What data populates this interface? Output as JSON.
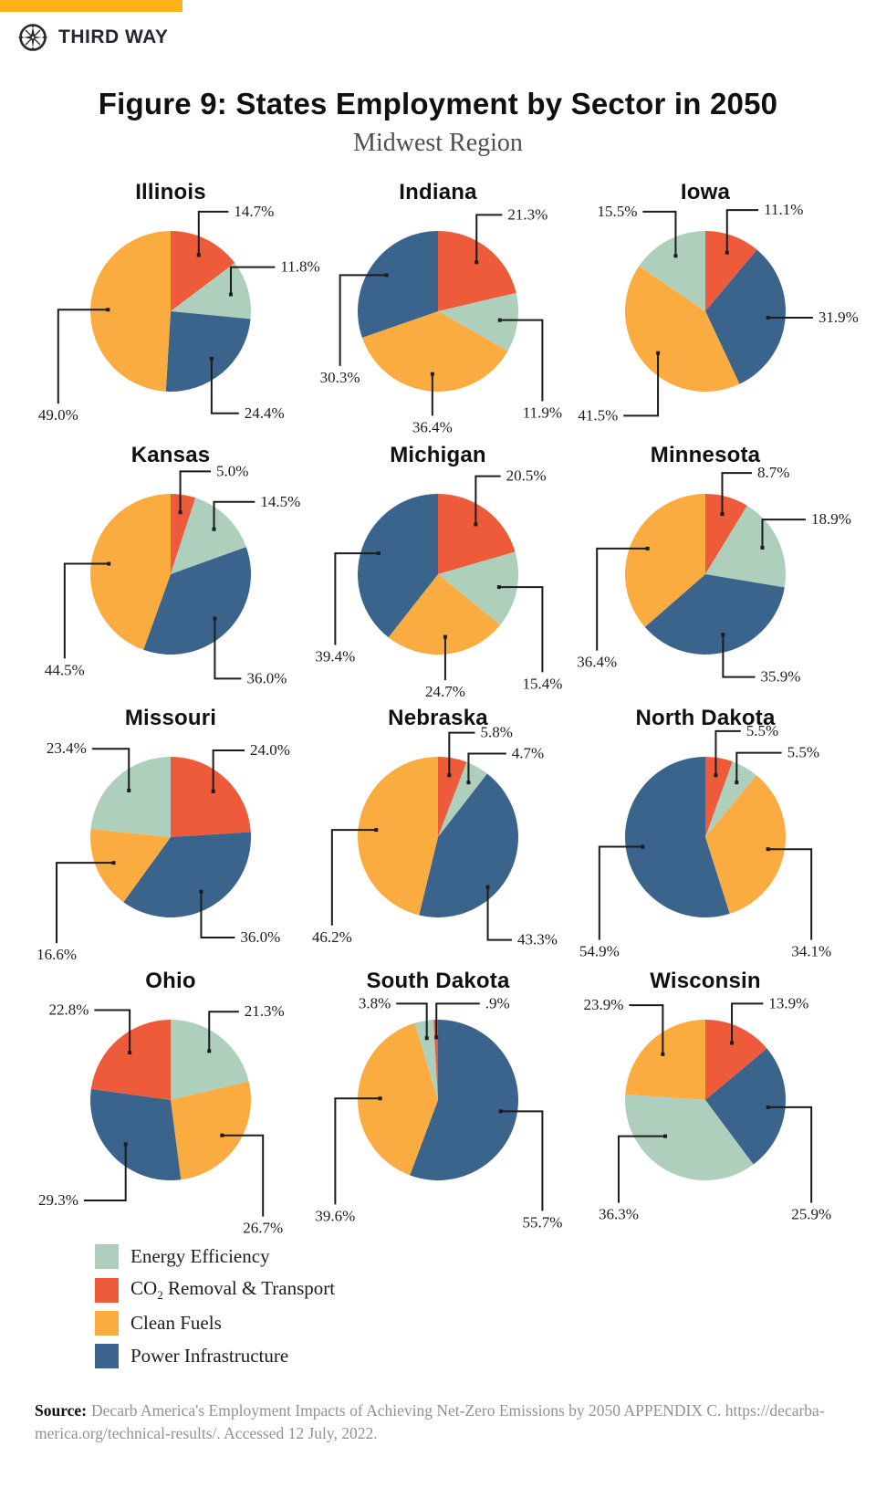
{
  "brand": {
    "name": "THIRD WAY",
    "logo_icon": "compass-icon",
    "accent_color": "#fbb117",
    "ink_color": "#23272e"
  },
  "title": "Figure 9: States Employment by Sector in 2050",
  "subtitle": "Midwest Region",
  "source": {
    "prefix": "Source:",
    "lines": [
      "Decarb America's Employment Impacts of Achieving Net-Zero Emissions by 2050 APPENDIX C. https://decarba-",
      "merica.org/technical-results/. Accessed 12 July, 2022."
    ]
  },
  "chart_data": {
    "type": "pie",
    "unit": "%",
    "start_angle_deg": 0,
    "direction": "clockwise",
    "legend_position": "bottom-left",
    "categories": [
      {
        "key": "ee",
        "pre": "Energy Efficiency",
        "sub": "",
        "post": "",
        "label": "Energy Efficiency",
        "color": "#aecfbc"
      },
      {
        "key": "co2",
        "pre": "CO",
        "sub": "2",
        "post": " Removal & Transport",
        "label": "CO2 Removal & Transport",
        "color": "#ed5b3b"
      },
      {
        "key": "fuels",
        "pre": "Clean Fuels",
        "sub": "",
        "post": "",
        "label": "Clean Fuels",
        "color": "#fbac41"
      },
      {
        "key": "power",
        "pre": "Power Infrastructure",
        "sub": "",
        "post": "",
        "label": "Power Infrastructure",
        "color": "#3b648d"
      }
    ],
    "pies": [
      {
        "state": "Illinois",
        "slices": [
          {
            "category": "co2",
            "value": 14.7,
            "label": "14.7%",
            "a": [
              0.35,
              -0.7
            ],
            "l": [
              0.72,
              -1.24
            ],
            "e": "vh",
            "t": "right"
          },
          {
            "category": "ee",
            "value": 11.8,
            "label": "11.8%",
            "a": [
              0.75,
              -0.21
            ],
            "l": [
              1.3,
              -0.55
            ],
            "e": "vh",
            "t": "right"
          },
          {
            "category": "power",
            "value": 24.4,
            "label": "24.4%",
            "a": [
              0.51,
              0.59
            ],
            "l": [
              0.85,
              1.27
            ],
            "e": "vh",
            "t": "right"
          },
          {
            "category": "fuels",
            "value": 49.0,
            "label": "49.0%",
            "a": [
              -0.78,
              -0.02
            ],
            "l": [
              -1.4,
              1.15
            ],
            "e": "hv",
            "t": "below"
          }
        ]
      },
      {
        "state": "Indiana",
        "slices": [
          {
            "category": "co2",
            "value": 21.3,
            "label": "21.3%",
            "a": [
              0.48,
              -0.61
            ],
            "l": [
              0.8,
              -1.2
            ],
            "e": "vh",
            "t": "right"
          },
          {
            "category": "ee",
            "value": 11.9,
            "label": "11.9%",
            "a": [
              0.77,
              0.11
            ],
            "l": [
              1.3,
              1.12
            ],
            "e": "hv",
            "t": "below"
          },
          {
            "category": "fuels",
            "value": 36.4,
            "label": "36.4%",
            "a": [
              -0.07,
              0.78
            ],
            "l": [
              -0.07,
              1.3
            ],
            "e": "vh",
            "t": "below"
          },
          {
            "category": "power",
            "value": 30.3,
            "label": "30.3%",
            "a": [
              -0.64,
              -0.45
            ],
            "l": [
              -1.22,
              0.68
            ],
            "e": "hv",
            "t": "below"
          }
        ]
      },
      {
        "state": "Iowa",
        "slices": [
          {
            "category": "co2",
            "value": 11.1,
            "label": "11.1%",
            "a": [
              0.27,
              -0.73
            ],
            "l": [
              0.66,
              -1.26
            ],
            "e": "vh",
            "t": "right"
          },
          {
            "category": "power",
            "value": 31.9,
            "label": "31.9%",
            "a": [
              0.78,
              0.08
            ],
            "l": [
              1.34,
              0.08
            ],
            "e": "hv",
            "t": "right"
          },
          {
            "category": "fuels",
            "value": 41.5,
            "label": "41.5%",
            "a": [
              -0.59,
              0.52
            ],
            "l": [
              -1.02,
              1.3
            ],
            "e": "vh",
            "t": "left"
          },
          {
            "category": "ee",
            "value": 15.5,
            "label": "15.5%",
            "a": [
              -0.37,
              -0.69
            ],
            "l": [
              -0.78,
              -1.24
            ],
            "e": "vh",
            "t": "left"
          }
        ]
      },
      {
        "state": "Kansas",
        "slices": [
          {
            "category": "co2",
            "value": 5.0,
            "label": "5.0%",
            "a": [
              0.12,
              -0.77
            ],
            "l": [
              0.5,
              -1.28
            ],
            "e": "vh",
            "t": "right"
          },
          {
            "category": "ee",
            "value": 14.5,
            "label": "14.5%",
            "a": [
              0.54,
              -0.56
            ],
            "l": [
              1.05,
              -0.9
            ],
            "e": "vh",
            "t": "right"
          },
          {
            "category": "power",
            "value": 36.0,
            "label": "36.0%",
            "a": [
              0.55,
              0.55
            ],
            "l": [
              0.88,
              1.3
            ],
            "e": "vh",
            "t": "right"
          },
          {
            "category": "fuels",
            "value": 44.5,
            "label": "44.5%",
            "a": [
              -0.77,
              -0.13
            ],
            "l": [
              -1.32,
              1.05
            ],
            "e": "hv",
            "t": "below"
          }
        ]
      },
      {
        "state": "Michigan",
        "slices": [
          {
            "category": "co2",
            "value": 20.5,
            "label": "20.5%",
            "a": [
              0.47,
              -0.62
            ],
            "l": [
              0.78,
              -1.22
            ],
            "e": "vh",
            "t": "right"
          },
          {
            "category": "ee",
            "value": 15.4,
            "label": "15.4%",
            "a": [
              0.76,
              0.16
            ],
            "l": [
              1.3,
              1.22
            ],
            "e": "hv",
            "t": "below"
          },
          {
            "category": "fuels",
            "value": 24.7,
            "label": "24.7%",
            "a": [
              0.09,
              0.78
            ],
            "l": [
              0.09,
              1.32
            ],
            "e": "vh",
            "t": "below"
          },
          {
            "category": "power",
            "value": 39.4,
            "label": "39.4%",
            "a": [
              -0.74,
              -0.26
            ],
            "l": [
              -1.28,
              0.88
            ],
            "e": "hv",
            "t": "below"
          }
        ]
      },
      {
        "state": "Minnesota",
        "slices": [
          {
            "category": "co2",
            "value": 8.7,
            "label": "8.7%",
            "a": [
              0.21,
              -0.75
            ],
            "l": [
              0.58,
              -1.26
            ],
            "e": "vh",
            "t": "right"
          },
          {
            "category": "ee",
            "value": 18.9,
            "label": "18.9%",
            "a": [
              0.71,
              -0.33
            ],
            "l": [
              1.25,
              -0.68
            ],
            "e": "vh",
            "t": "right"
          },
          {
            "category": "power",
            "value": 35.9,
            "label": "35.9%",
            "a": [
              0.22,
              0.75
            ],
            "l": [
              0.62,
              1.28
            ],
            "e": "vh",
            "t": "right"
          },
          {
            "category": "fuels",
            "value": 36.4,
            "label": "36.4%",
            "a": [
              -0.72,
              -0.32
            ],
            "l": [
              -1.35,
              0.95
            ],
            "e": "hv",
            "t": "below"
          }
        ]
      },
      {
        "state": "Missouri",
        "slices": [
          {
            "category": "co2",
            "value": 24.0,
            "label": "24.0%",
            "a": [
              0.53,
              -0.57
            ],
            "l": [
              0.92,
              -1.08
            ],
            "e": "vh",
            "t": "right"
          },
          {
            "category": "power",
            "value": 36.0,
            "label": "36.0%",
            "a": [
              0.38,
              0.68
            ],
            "l": [
              0.8,
              1.25
            ],
            "e": "vh",
            "t": "right"
          },
          {
            "category": "fuels",
            "value": 16.6,
            "label": "16.6%",
            "a": [
              -0.71,
              0.32
            ],
            "l": [
              -1.42,
              1.32
            ],
            "e": "hv",
            "t": "below"
          },
          {
            "category": "ee",
            "value": 23.4,
            "label": "23.4%",
            "a": [
              -0.52,
              -0.58
            ],
            "l": [
              -0.98,
              -1.1
            ],
            "e": "vh",
            "t": "left"
          }
        ]
      },
      {
        "state": "Nebraska",
        "slices": [
          {
            "category": "co2",
            "value": 5.8,
            "label": "5.8%",
            "a": [
              0.14,
              -0.77
            ],
            "l": [
              0.46,
              -1.3
            ],
            "e": "vh",
            "t": "right"
          },
          {
            "category": "ee",
            "value": 4.7,
            "label": "4.7%",
            "a": [
              0.38,
              -0.68
            ],
            "l": [
              0.85,
              -1.04
            ],
            "e": "vh",
            "t": "right"
          },
          {
            "category": "power",
            "value": 43.3,
            "label": "43.3%",
            "a": [
              0.62,
              0.62
            ],
            "l": [
              0.92,
              1.28
            ],
            "e": "vh",
            "t": "right"
          },
          {
            "category": "fuels",
            "value": 46.2,
            "label": "46.2%",
            "a": [
              -0.77,
              -0.09
            ],
            "l": [
              -1.32,
              1.1
            ],
            "e": "hv",
            "t": "below"
          }
        ]
      },
      {
        "state": "North Dakota",
        "slices": [
          {
            "category": "co2",
            "value": 5.5,
            "label": "5.5%",
            "a": [
              0.13,
              -0.77
            ],
            "l": [
              0.44,
              -1.32
            ],
            "e": "vh",
            "t": "right"
          },
          {
            "category": "ee",
            "value": 5.5,
            "label": "5.5%",
            "a": [
              0.39,
              -0.68
            ],
            "l": [
              0.95,
              -1.05
            ],
            "e": "vh",
            "t": "right"
          },
          {
            "category": "fuels",
            "value": 34.1,
            "label": "34.1%",
            "a": [
              0.78,
              0.15
            ],
            "l": [
              1.32,
              1.28
            ],
            "e": "hv",
            "t": "below"
          },
          {
            "category": "power",
            "value": 54.9,
            "label": "54.9%",
            "a": [
              -0.78,
              0.12
            ],
            "l": [
              -1.32,
              1.28
            ],
            "e": "hv",
            "t": "below"
          }
        ]
      },
      {
        "state": "Ohio",
        "slices": [
          {
            "category": "ee",
            "value": 21.3,
            "label": "21.3%",
            "a": [
              0.48,
              -0.61
            ],
            "l": [
              0.85,
              -1.1
            ],
            "e": "vh",
            "t": "right"
          },
          {
            "category": "fuels",
            "value": 26.7,
            "label": "26.7%",
            "a": [
              0.64,
              0.44
            ],
            "l": [
              1.15,
              1.45
            ],
            "e": "hv",
            "t": "below"
          },
          {
            "category": "power",
            "value": 29.3,
            "label": "29.3%",
            "a": [
              -0.56,
              0.55
            ],
            "l": [
              -1.08,
              1.25
            ],
            "e": "vh",
            "t": "left"
          },
          {
            "category": "co2",
            "value": 22.8,
            "label": "22.8%",
            "a": [
              -0.51,
              -0.59
            ],
            "l": [
              -0.95,
              -1.12
            ],
            "e": "vh",
            "t": "left"
          }
        ]
      },
      {
        "state": "South Dakota",
        "slices": [
          {
            "category": "power",
            "value": 55.7,
            "label": "55.7%",
            "a": [
              0.78,
              0.14
            ],
            "l": [
              1.3,
              1.38
            ],
            "e": "hv",
            "t": "below"
          },
          {
            "category": "fuels",
            "value": 39.6,
            "label": "39.6%",
            "a": [
              -0.72,
              -0.02
            ],
            "l": [
              -1.28,
              1.3
            ],
            "e": "hv",
            "t": "below"
          },
          {
            "category": "ee",
            "value": 3.8,
            "label": "3.8%",
            "a": [
              -0.14,
              -0.77
            ],
            "l": [
              -0.52,
              -1.2
            ],
            "e": "vh",
            "t": "left"
          },
          {
            "category": "co2",
            "value": 0.9,
            "label": ".9%",
            "a": [
              -0.02,
              -0.78
            ],
            "l": [
              0.52,
              -1.2
            ],
            "e": "vh",
            "t": "right"
          }
        ]
      },
      {
        "state": "Wisconsin",
        "slices": [
          {
            "category": "co2",
            "value": 13.9,
            "label": "13.9%",
            "a": [
              0.33,
              -0.71
            ],
            "l": [
              0.72,
              -1.2
            ],
            "e": "vh",
            "t": "right"
          },
          {
            "category": "power",
            "value": 25.9,
            "label": "25.9%",
            "a": [
              0.78,
              0.09
            ],
            "l": [
              1.32,
              1.28
            ],
            "e": "hv",
            "t": "below"
          },
          {
            "category": "ee",
            "value": 36.3,
            "label": "36.3%",
            "a": [
              -0.5,
              0.45
            ],
            "l": [
              -1.08,
              1.28
            ],
            "e": "hv",
            "t": "below"
          },
          {
            "category": "fuels",
            "value": 23.9,
            "label": "23.9%",
            "a": [
              -0.53,
              -0.57
            ],
            "l": [
              -0.95,
              -1.18
            ],
            "e": "vh",
            "t": "left"
          }
        ]
      }
    ]
  }
}
